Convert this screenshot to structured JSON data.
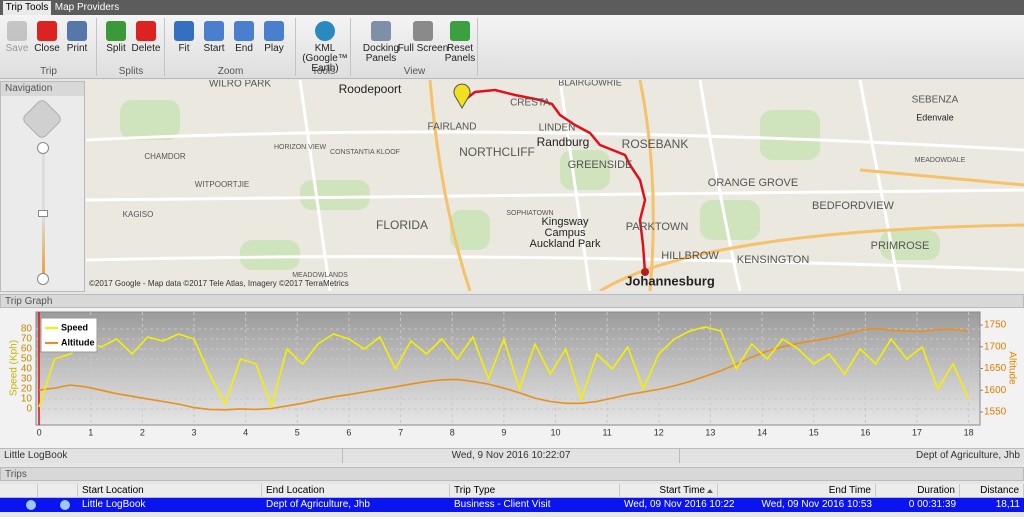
{
  "tabs": [
    "Trip Tools",
    "Map Providers"
  ],
  "ribbon": {
    "groups": [
      {
        "label": "Trip",
        "buttons": [
          "Save",
          "Close",
          "Print"
        ]
      },
      {
        "label": "Splits",
        "buttons": [
          "Split",
          "Delete"
        ]
      },
      {
        "label": "Zoom",
        "buttons": [
          "Fit",
          "Start",
          "End",
          "Play"
        ]
      },
      {
        "label": "Tools",
        "buttons": [
          "KML (Google™ Earth)"
        ]
      },
      {
        "label": "View",
        "buttons": [
          "Docking Panels",
          "Full Screen",
          "Reset Panels"
        ]
      }
    ]
  },
  "navigation": {
    "title": "Navigation"
  },
  "map": {
    "labels": [
      "Roodepoort",
      "WILRO PARK",
      "FAIRLAND",
      "NORTHCLIFF",
      "Randburg",
      "CRESTA",
      "LINDEN",
      "BLAIRGOWRIE",
      "GREENSIDE",
      "ROSEBANK",
      "ORANGE GROVE",
      "BEDFORDVIEW",
      "PRIMROSE",
      "KENSINGTON",
      "HILLBROW",
      "PARKTOWN",
      "FLORIDA",
      "Kingsway",
      "Campus",
      "Auckland Park",
      "Johannesburg",
      "SEBENZA",
      "Edenvale",
      "CHAMDOR",
      "KAGISO",
      "WITPOORTJIE",
      "CONSTANTIA KLOOF",
      "HORIZON VIEW",
      "SOPHIATOWN",
      "MEADOWLANDS",
      "MEADOWDALE"
    ],
    "attribution": "©2017 Google - Map data ©2017 Tele Atlas, Imagery ©2017 TerraMetrics"
  },
  "trip_graph": {
    "title": "Trip Graph",
    "status": [
      "Little LogBook",
      "Wed, 9 Nov 2016 10:22:07",
      "Dept of Agriculture, Jhb"
    ]
  },
  "chart_data": {
    "type": "line",
    "y_label": "Speed (Kph)",
    "y2_label": "Altitude",
    "grid": true,
    "x": [
      0,
      0.3,
      0.6,
      0.9,
      1.2,
      1.5,
      1.8,
      2.1,
      2.4,
      2.7,
      3,
      3.3,
      3.6,
      3.9,
      4.2,
      4.5,
      4.8,
      5.1,
      5.4,
      5.7,
      6,
      6.3,
      6.6,
      6.9,
      7.2,
      7.5,
      7.8,
      8.1,
      8.4,
      8.7,
      9,
      9.3,
      9.6,
      9.9,
      10.2,
      10.5,
      10.8,
      11.1,
      11.4,
      11.7,
      12,
      12.3,
      12.6,
      12.9,
      13.2,
      13.5,
      13.8,
      14.1,
      14.4,
      14.7,
      15,
      15.3,
      15.6,
      15.9,
      16.2,
      16.5,
      16.8,
      17.1,
      17.4,
      17.7,
      18
    ],
    "series": [
      {
        "name": "Speed",
        "color": "#f5f000",
        "values": [
          2,
          50,
          55,
          68,
          62,
          70,
          55,
          72,
          68,
          75,
          70,
          35,
          5,
          50,
          45,
          3,
          60,
          45,
          65,
          75,
          70,
          60,
          72,
          40,
          68,
          55,
          70,
          50,
          72,
          30,
          70,
          20,
          65,
          35,
          60,
          10,
          55,
          40,
          62,
          20,
          55,
          70,
          78,
          82,
          78,
          40,
          65,
          50,
          70,
          60,
          45,
          55,
          35,
          60,
          45,
          70,
          50,
          62,
          20,
          45,
          10
        ]
      },
      {
        "name": "Altitude",
        "color": "#e8901a",
        "axis": "y2",
        "values": [
          1600,
          1605,
          1612,
          1608,
          1600,
          1592,
          1586,
          1580,
          1574,
          1568,
          1560,
          1556,
          1555,
          1557,
          1556,
          1558,
          1564,
          1570,
          1578,
          1585,
          1590,
          1596,
          1602,
          1608,
          1614,
          1620,
          1624,
          1625,
          1620,
          1614,
          1605,
          1594,
          1582,
          1574,
          1570,
          1570,
          1574,
          1582,
          1590,
          1596,
          1602,
          1610,
          1620,
          1632,
          1645,
          1660,
          1676,
          1690,
          1700,
          1708,
          1714,
          1720,
          1728,
          1738,
          1742,
          1738,
          1736,
          1735,
          1740,
          1740,
          1736
        ]
      }
    ],
    "xlim": [
      -0.06,
      18.22
    ],
    "xticks": [
      0,
      1,
      2,
      3,
      4,
      5,
      6,
      7,
      8,
      9,
      10,
      11,
      12,
      13,
      14,
      15,
      16,
      17,
      18
    ],
    "ylim": [
      -16,
      97
    ],
    "yticks": [
      0,
      10,
      20,
      30,
      40,
      50,
      60,
      70,
      80
    ],
    "y2lim": [
      1520,
      1780
    ],
    "y2ticks": [
      1550,
      1600,
      1650,
      1700,
      1750
    ]
  },
  "trips": {
    "title": "Trips",
    "columns": [
      "Start Location",
      "End Location",
      "Trip Type",
      "Start Time",
      "End Time",
      "Duration",
      "Distance"
    ],
    "rows": [
      [
        "Little LogBook",
        "Dept of Agriculture, Jhb",
        "Business - Client Visit",
        "Wed, 09 Nov 2016 10:22",
        "Wed, 09 Nov 2016 10:53",
        "0 00:31:39",
        "18,11"
      ]
    ]
  }
}
